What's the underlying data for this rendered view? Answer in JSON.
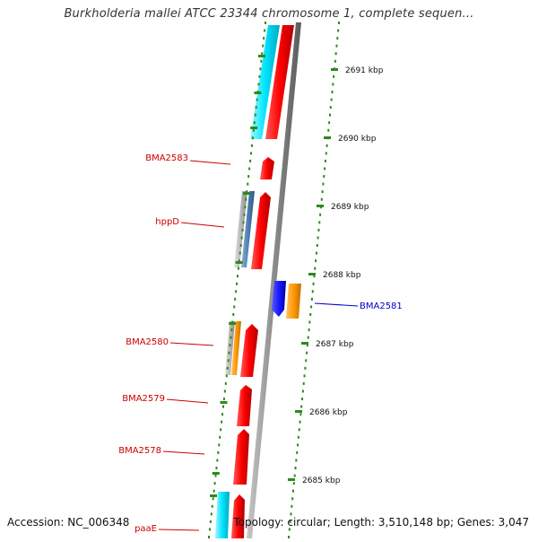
{
  "title": "Burkholderia mallei ATCC 23344 chromosome 1, complete sequen...",
  "footer": {
    "accession": "Accession: NC_006348",
    "summary": "Topology: circular; Length: 3,510,148 bp; Genes: 3,047"
  },
  "ticks": [
    {
      "label": "2691 kbp"
    },
    {
      "label": "2690 kbp"
    },
    {
      "label": "2689 kbp"
    },
    {
      "label": "2688 kbp"
    },
    {
      "label": "2687 kbp"
    },
    {
      "label": "2686 kbp"
    },
    {
      "label": "2685 kbp"
    }
  ],
  "genes": [
    {
      "label": "BMA2583",
      "color": "#cc0000"
    },
    {
      "label": "hppD",
      "color": "#cc0000"
    },
    {
      "label": "BMA2581",
      "color": "#0000cc"
    },
    {
      "label": "BMA2580",
      "color": "#cc0000"
    },
    {
      "label": "BMA2579",
      "color": "#cc0000"
    },
    {
      "label": "BMA2578",
      "color": "#cc0000"
    },
    {
      "label": "paaE",
      "color": "#cc0000"
    }
  ],
  "colors": {
    "cds": "#ff0000",
    "cds_minus": "#1a1aff",
    "cyan": "#00e5ff",
    "orange": "#ff9900",
    "gray": "#b0b0b0",
    "steel": "#4f7fb5",
    "backbone": "#8c8c8c",
    "dots": "#2d8a1e"
  }
}
